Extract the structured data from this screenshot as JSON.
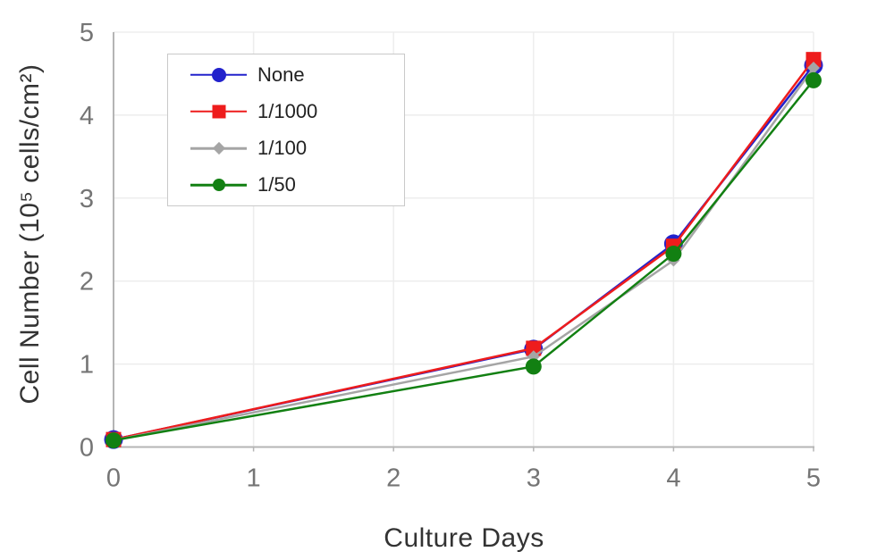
{
  "chart_data": {
    "type": "line",
    "title": "",
    "xlabel": "Culture Days",
    "ylabel": "Cell Number (10⁵ cells/cm²)",
    "xlim": [
      0,
      5
    ],
    "ylim": [
      0,
      5
    ],
    "xticks": [
      "0",
      "1",
      "2",
      "3",
      "4",
      "5"
    ],
    "yticks": [
      "0",
      "1",
      "2",
      "3",
      "4",
      "5"
    ],
    "grid": true,
    "legend_position": "upper-left-inside",
    "x": [
      0,
      3,
      4,
      5
    ],
    "series": [
      {
        "name": "None",
        "color": "#2222cc",
        "marker": "circle",
        "values": [
          0.09,
          1.18,
          2.45,
          4.6
        ]
      },
      {
        "name": "1/1000",
        "color": "#ee1c1c",
        "marker": "square",
        "values": [
          0.09,
          1.19,
          2.42,
          4.67
        ]
      },
      {
        "name": "1/100",
        "color": "#a5a5a5",
        "marker": "diamond",
        "values": [
          0.08,
          1.09,
          2.25,
          4.57
        ]
      },
      {
        "name": "1/50",
        "color": "#128012",
        "marker": "circle",
        "values": [
          0.08,
          0.97,
          2.33,
          4.42
        ]
      }
    ],
    "colors": {
      "axis": "#b5b5b5",
      "grid": "#ededed",
      "tick_label": "#757575",
      "axis_label": "#333333",
      "legend_text": "#222222",
      "legend_border": "#c9c9c9",
      "background": "#ffffff"
    }
  }
}
